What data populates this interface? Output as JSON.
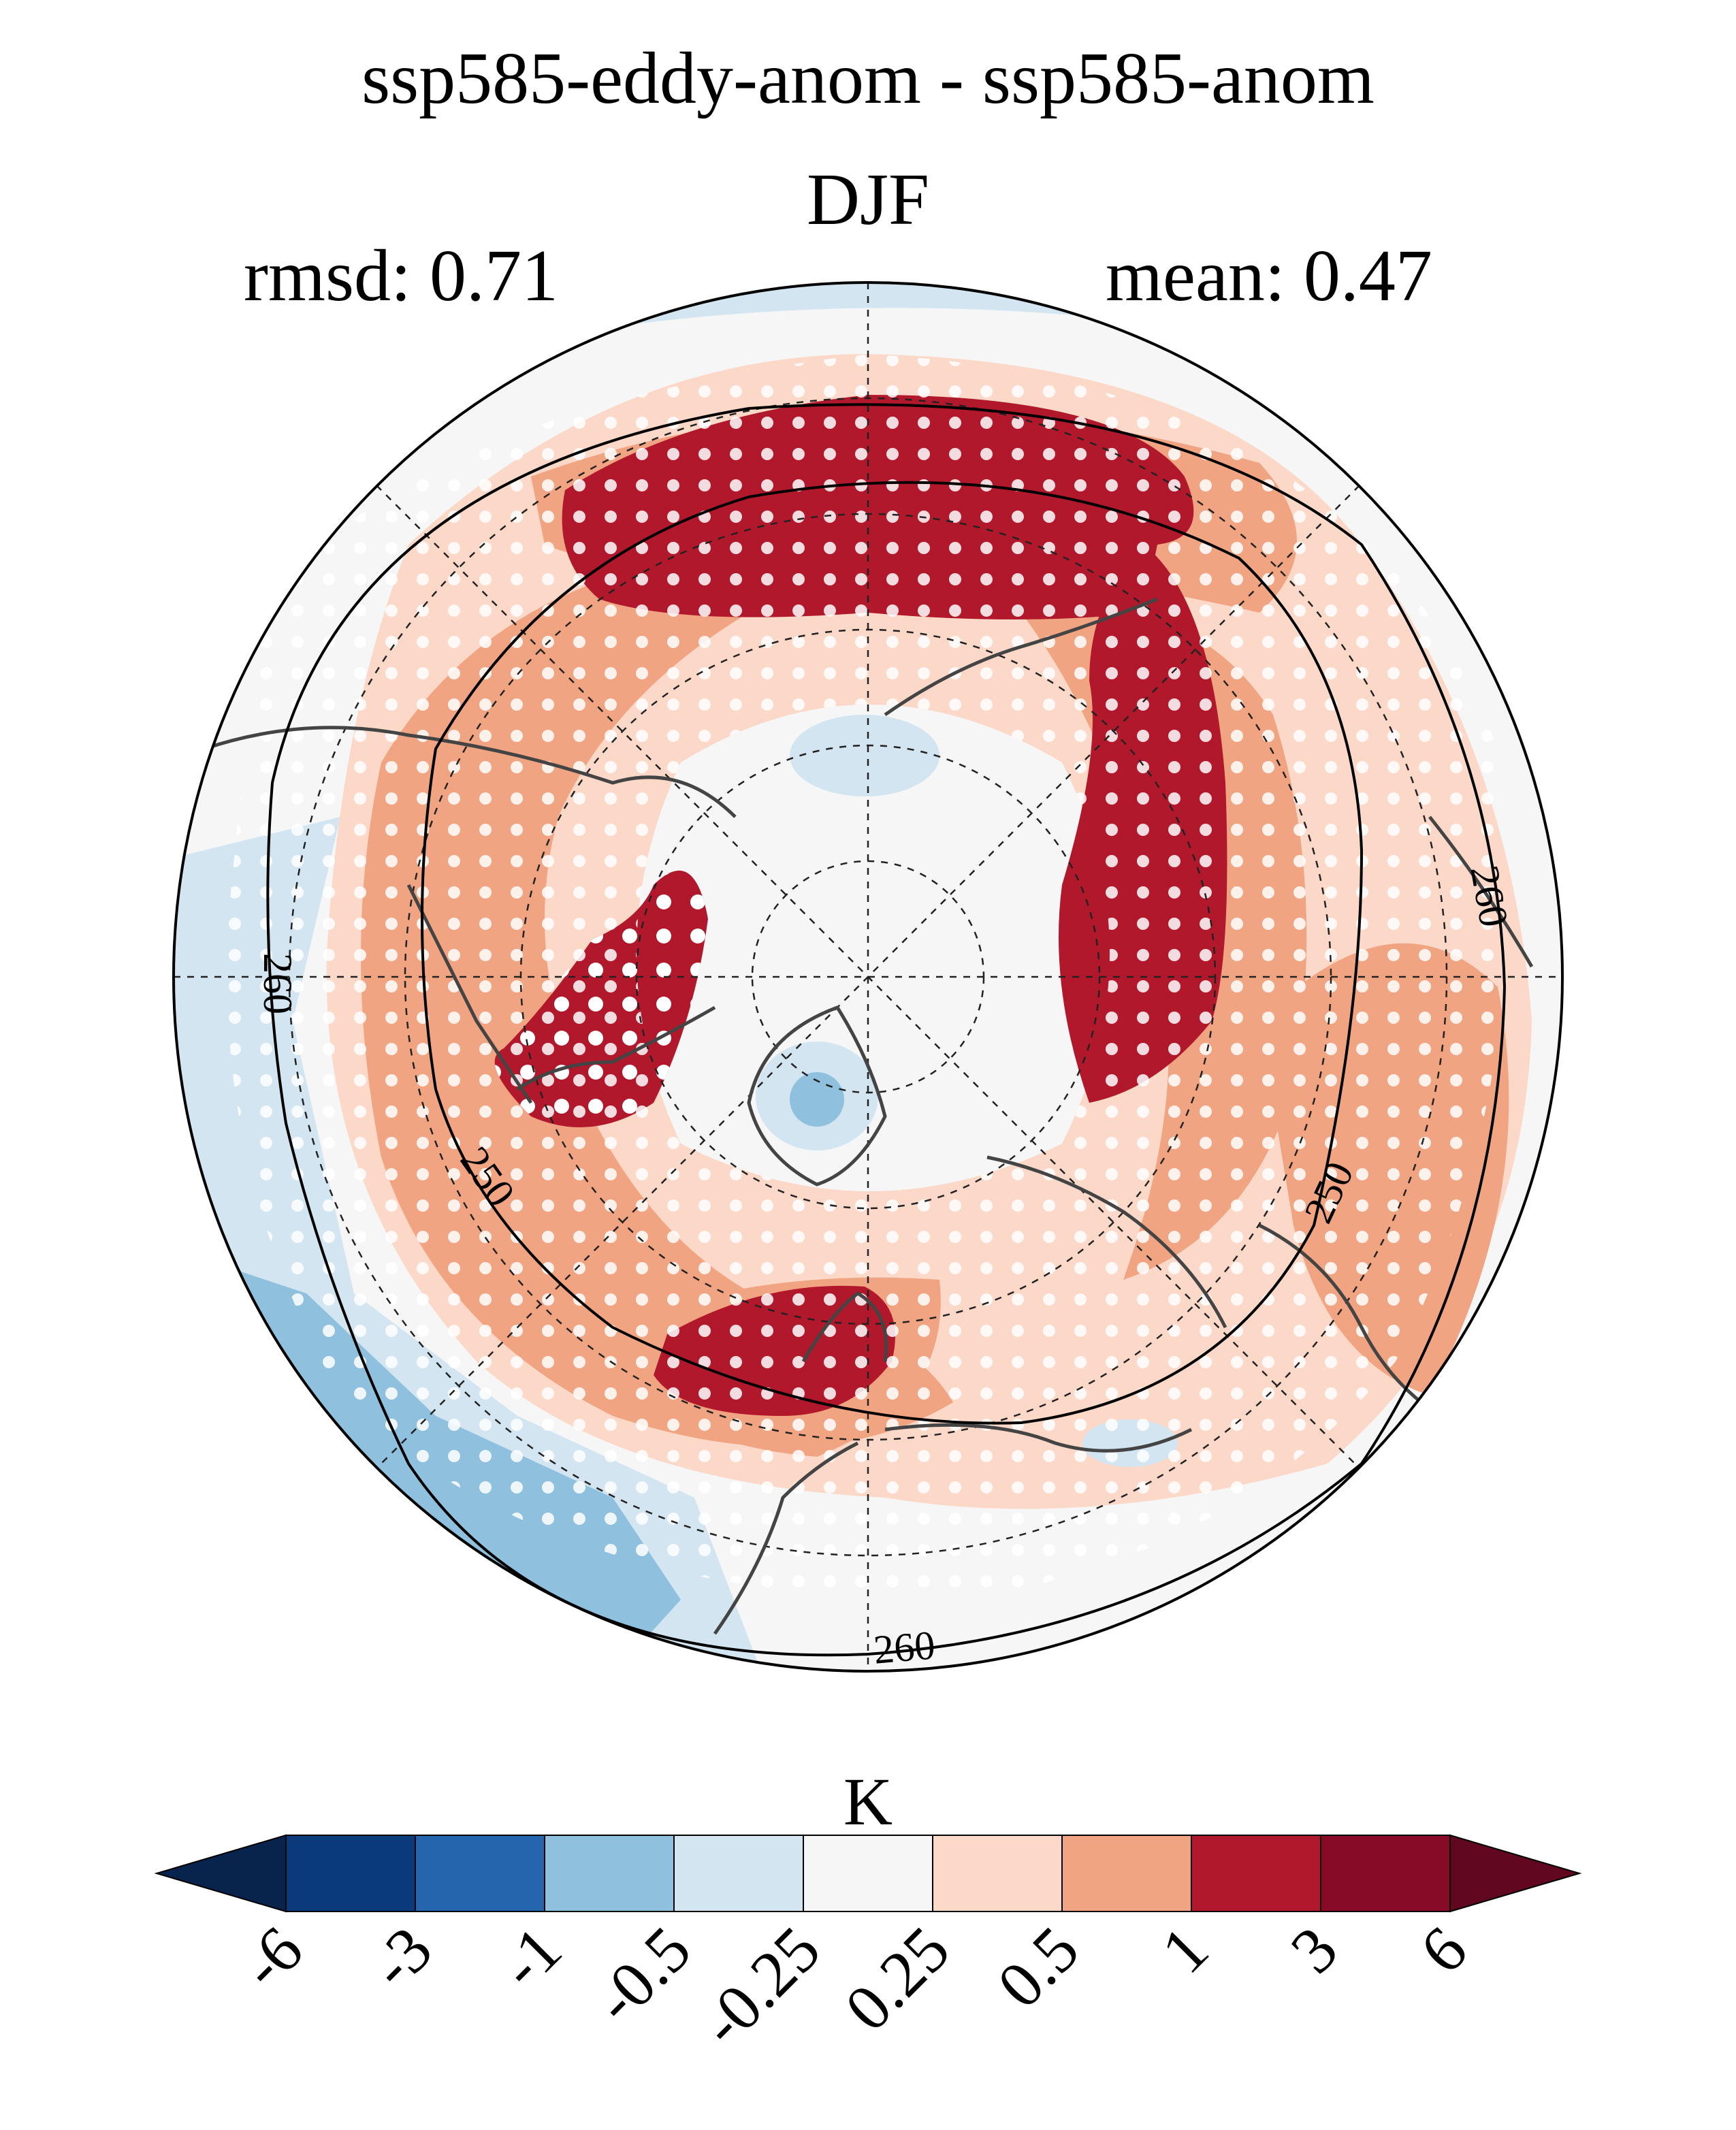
{
  "title": {
    "line1": "ssp585-eddy-anom - ssp585-anom",
    "line2": "DJF"
  },
  "stats": {
    "rmsd": "rmsd: 0.71",
    "mean": "mean: 0.47"
  },
  "map": {
    "projection": "north polar stereographic",
    "contour_labels": [
      "260",
      "260",
      "250",
      "250",
      "260"
    ]
  },
  "colorbar": {
    "unit": "K",
    "ticks": [
      "-6",
      "-3",
      "-1",
      "-0.5",
      "-0.25",
      "0.25",
      "0.5",
      "1",
      "3",
      "6"
    ],
    "colors": [
      "#08244d",
      "#0b3a7a",
      "#2465ad",
      "#8fc1de",
      "#d2e5f0",
      "#f6f6f6",
      "#fbd8c7",
      "#f1a482",
      "#b1182b",
      "#870b26",
      "#620720"
    ]
  }
}
